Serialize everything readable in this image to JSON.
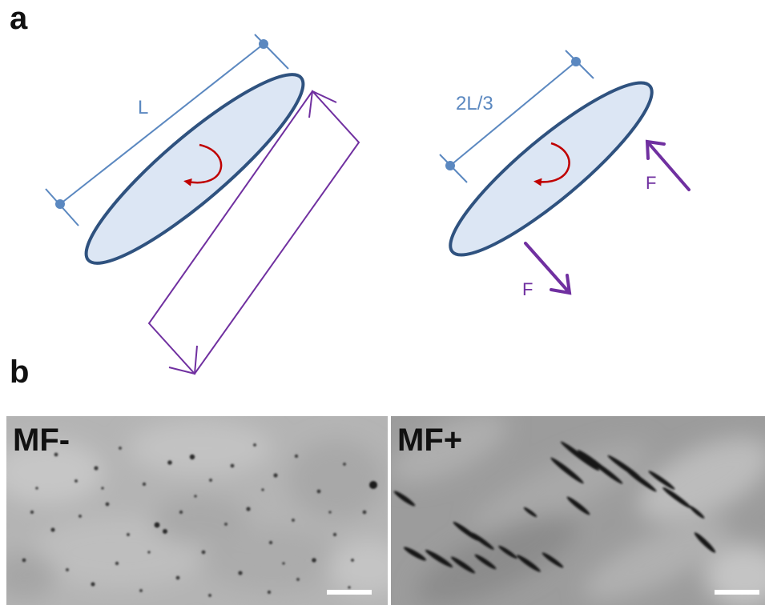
{
  "panels": {
    "a": {
      "label": "a"
    },
    "b": {
      "label": "b"
    }
  },
  "diagram": {
    "left": {
      "length_label": "L"
    },
    "right": {
      "length_label": "2L/3",
      "force_label_top": "F",
      "force_label_bottom": "F"
    }
  },
  "micrographs": {
    "left": {
      "label": "MF-"
    },
    "right": {
      "label": "MF+"
    }
  },
  "colors": {
    "ellipse_fill": "#dce6f4",
    "ellipse_stroke": "#2f527f",
    "dimension": "#5b88c0",
    "rotation_arrow": "#c00000",
    "force": "#7030a0",
    "scale_bar": "#ffffff"
  }
}
